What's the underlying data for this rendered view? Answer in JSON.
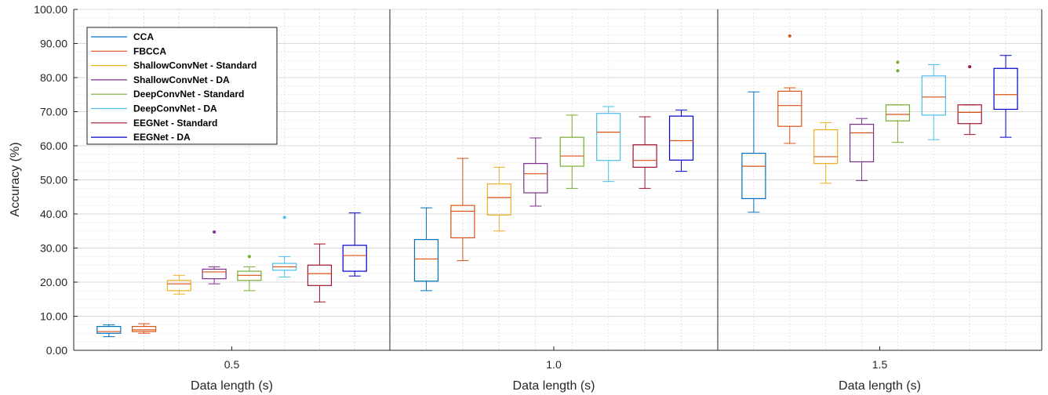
{
  "chart_data": {
    "type": "boxplot",
    "ylabel": "Accuracy (%)",
    "ylim": [
      0,
      100
    ],
    "yticks": [
      "0.00",
      "10.00",
      "20.00",
      "30.00",
      "40.00",
      "50.00",
      "60.00",
      "70.00",
      "80.00",
      "90.00",
      "100.00"
    ],
    "grid": true,
    "legend_position": "top-left",
    "series": [
      {
        "name": "CCA",
        "color": "#0072BD"
      },
      {
        "name": "FBCCA",
        "color": "#D95319"
      },
      {
        "name": "ShallowConvNet - Standard",
        "color": "#EDB120"
      },
      {
        "name": "ShallowConvNet - DA",
        "color": "#7E2F8E"
      },
      {
        "name": "DeepConvNet - Standard",
        "color": "#77AC30"
      },
      {
        "name": "DeepConvNet - DA",
        "color": "#4DBEEE"
      },
      {
        "name": "EEGNet - Standard",
        "color": "#A2142F"
      },
      {
        "name": "EEGNet - DA",
        "color": "#0000CC"
      }
    ],
    "median_color": "#D95319",
    "whisker_color": "#333333",
    "panels": [
      {
        "xlabel": "Data length (s)",
        "tick": "0.5",
        "boxes": [
          {
            "min": 4.0,
            "q1": 5.0,
            "median": 5.5,
            "q3": 7.0,
            "max": 7.5,
            "outliers": []
          },
          {
            "min": 5.0,
            "q1": 5.5,
            "median": 6.0,
            "q3": 7.0,
            "max": 7.8,
            "outliers": []
          },
          {
            "min": 16.5,
            "q1": 17.5,
            "median": 19.5,
            "q3": 20.5,
            "max": 22.0,
            "outliers": []
          },
          {
            "min": 19.5,
            "q1": 21.0,
            "median": 23.0,
            "q3": 23.8,
            "max": 24.5,
            "outliers": [
              34.7
            ]
          },
          {
            "min": 17.5,
            "q1": 20.5,
            "median": 22.0,
            "q3": 23.2,
            "max": 24.5,
            "outliers": [
              27.5
            ]
          },
          {
            "min": 21.5,
            "q1": 23.5,
            "median": 24.5,
            "q3": 25.5,
            "max": 27.5,
            "outliers": [
              39.0
            ]
          },
          {
            "min": 14.2,
            "q1": 19.0,
            "median": 22.5,
            "q3": 25.0,
            "max": 31.2,
            "outliers": []
          },
          {
            "min": 21.8,
            "q1": 23.2,
            "median": 27.8,
            "q3": 30.8,
            "max": 40.3,
            "outliers": []
          }
        ]
      },
      {
        "xlabel": "Data length (s)",
        "tick": "1.0",
        "boxes": [
          {
            "min": 17.5,
            "q1": 20.3,
            "median": 26.8,
            "q3": 32.5,
            "max": 41.8,
            "outliers": []
          },
          {
            "min": 26.3,
            "q1": 33.0,
            "median": 40.8,
            "q3": 42.5,
            "max": 56.3,
            "outliers": []
          },
          {
            "min": 35.0,
            "q1": 39.7,
            "median": 44.8,
            "q3": 48.8,
            "max": 53.7,
            "outliers": []
          },
          {
            "min": 42.3,
            "q1": 46.2,
            "median": 51.8,
            "q3": 54.8,
            "max": 62.3,
            "outliers": []
          },
          {
            "min": 47.5,
            "q1": 54.0,
            "median": 57.0,
            "q3": 62.5,
            "max": 69.0,
            "outliers": []
          },
          {
            "min": 49.5,
            "q1": 55.7,
            "median": 64.0,
            "q3": 69.5,
            "max": 71.5,
            "outliers": []
          },
          {
            "min": 47.5,
            "q1": 53.7,
            "median": 55.7,
            "q3": 60.3,
            "max": 68.5,
            "outliers": []
          },
          {
            "min": 52.5,
            "q1": 55.8,
            "median": 61.5,
            "q3": 68.7,
            "max": 70.5,
            "outliers": []
          }
        ]
      },
      {
        "xlabel": "Data length (s)",
        "tick": "1.5",
        "boxes": [
          {
            "min": 40.5,
            "q1": 44.5,
            "median": 54.0,
            "q3": 57.8,
            "max": 75.8,
            "outliers": []
          },
          {
            "min": 60.7,
            "q1": 65.7,
            "median": 71.8,
            "q3": 76.0,
            "max": 77.0,
            "outliers": [
              92.2
            ]
          },
          {
            "min": 49.0,
            "q1": 54.8,
            "median": 56.8,
            "q3": 64.7,
            "max": 66.8,
            "outliers": []
          },
          {
            "min": 49.8,
            "q1": 55.3,
            "median": 63.8,
            "q3": 66.3,
            "max": 68.0,
            "outliers": []
          },
          {
            "min": 61.0,
            "q1": 67.3,
            "median": 69.2,
            "q3": 72.0,
            "max": 72.0,
            "outliers": [
              82.0,
              84.5
            ]
          },
          {
            "min": 61.8,
            "q1": 69.0,
            "median": 74.3,
            "q3": 80.5,
            "max": 83.8,
            "outliers": []
          },
          {
            "min": 63.3,
            "q1": 66.5,
            "median": 69.8,
            "q3": 72.0,
            "max": 72.0,
            "outliers": [
              83.2
            ]
          },
          {
            "min": 62.5,
            "q1": 70.7,
            "median": 75.0,
            "q3": 82.7,
            "max": 86.5,
            "outliers": []
          }
        ]
      }
    ]
  }
}
